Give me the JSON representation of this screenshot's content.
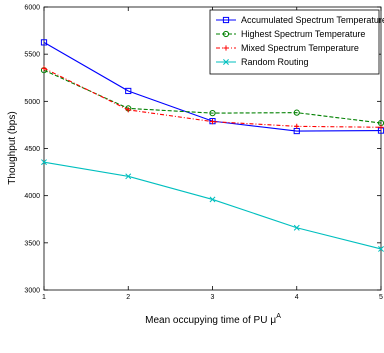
{
  "chart_data": {
    "type": "line",
    "xlabel_main": "Mean occupying time of PU",
    "xlabel_mu": "μ",
    "xlabel_sup": "A",
    "ylabel": "Thoughput (bps)",
    "xlim": [
      1,
      5
    ],
    "ylim": [
      3000,
      6000
    ],
    "x_ticks": [
      "1",
      "2",
      "3",
      "4",
      "5"
    ],
    "y_ticks": [
      "3000",
      "3500",
      "4000",
      "4500",
      "5000",
      "5500",
      "6000"
    ],
    "x": [
      1,
      2,
      3,
      4,
      5
    ],
    "legend_position": "top-right",
    "grid": false,
    "series": [
      {
        "name": "Accumulated Spectrum Temperature",
        "color": "#0000ff",
        "dash": "",
        "marker": "square",
        "values": [
          5625,
          5110,
          4790,
          4685,
          4690
        ]
      },
      {
        "name": "Highest Spectrum Temperature",
        "color": "#008000",
        "dash": "4,2",
        "marker": "circle",
        "values": [
          5330,
          4925,
          4875,
          4880,
          4770
        ]
      },
      {
        "name": "Mixed Spectrum Temperature",
        "color": "#ff0000",
        "dash": "4,2,1,2",
        "marker": "plus",
        "values": [
          5350,
          4910,
          4785,
          4735,
          4725
        ]
      },
      {
        "name": "Random Routing",
        "color": "#00bfbf",
        "dash": "",
        "marker": "x",
        "values": [
          4355,
          4205,
          3960,
          3660,
          3435
        ]
      }
    ]
  }
}
